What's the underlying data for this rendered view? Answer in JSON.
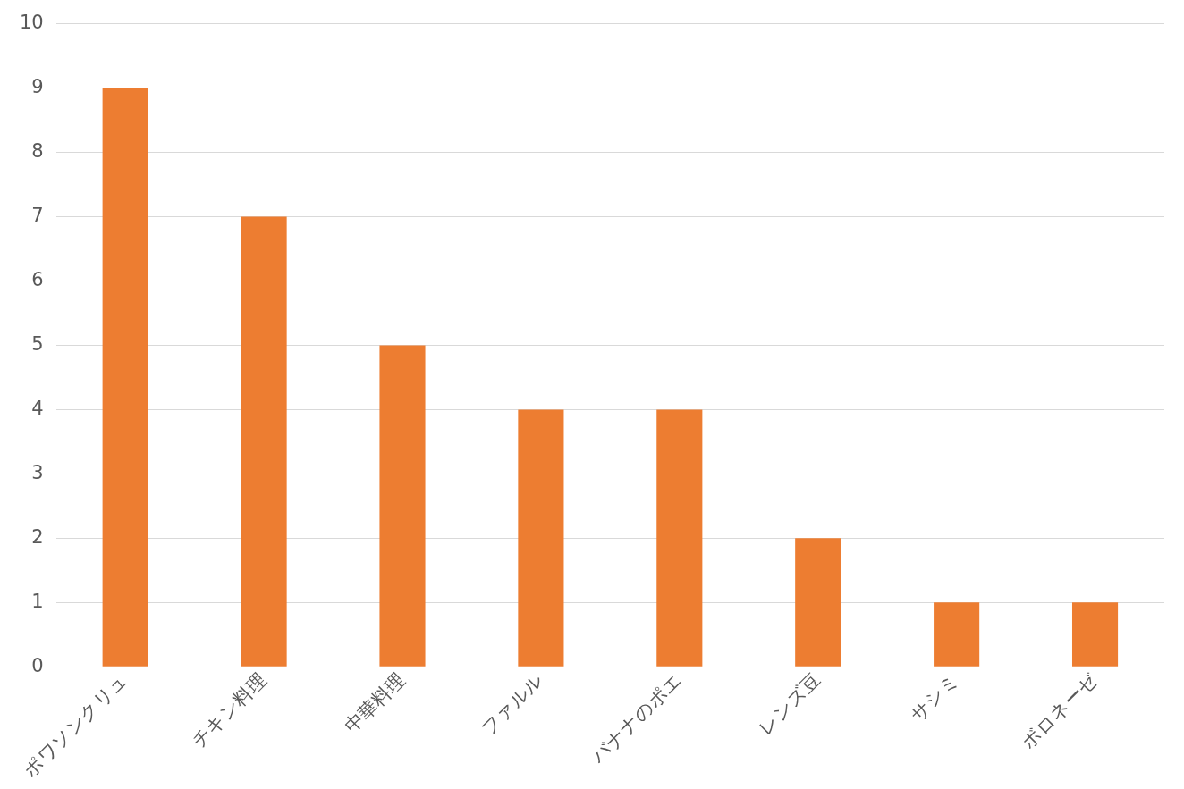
{
  "chart_data": {
    "type": "bar",
    "categories": [
      "ポワソンクリュ",
      "チキン料理",
      "中華料理",
      "ファルル",
      "バナナのポエ",
      "レンズ豆",
      "サシミ",
      "ボロネーゼ"
    ],
    "values": [
      9,
      7,
      5,
      4,
      4,
      2,
      1,
      1
    ],
    "color": "#ed7d31",
    "ylim": [
      0,
      10
    ],
    "yticks": [
      0,
      1,
      2,
      3,
      4,
      5,
      6,
      7,
      8,
      9,
      10
    ],
    "grid": "y",
    "legend": false
  }
}
